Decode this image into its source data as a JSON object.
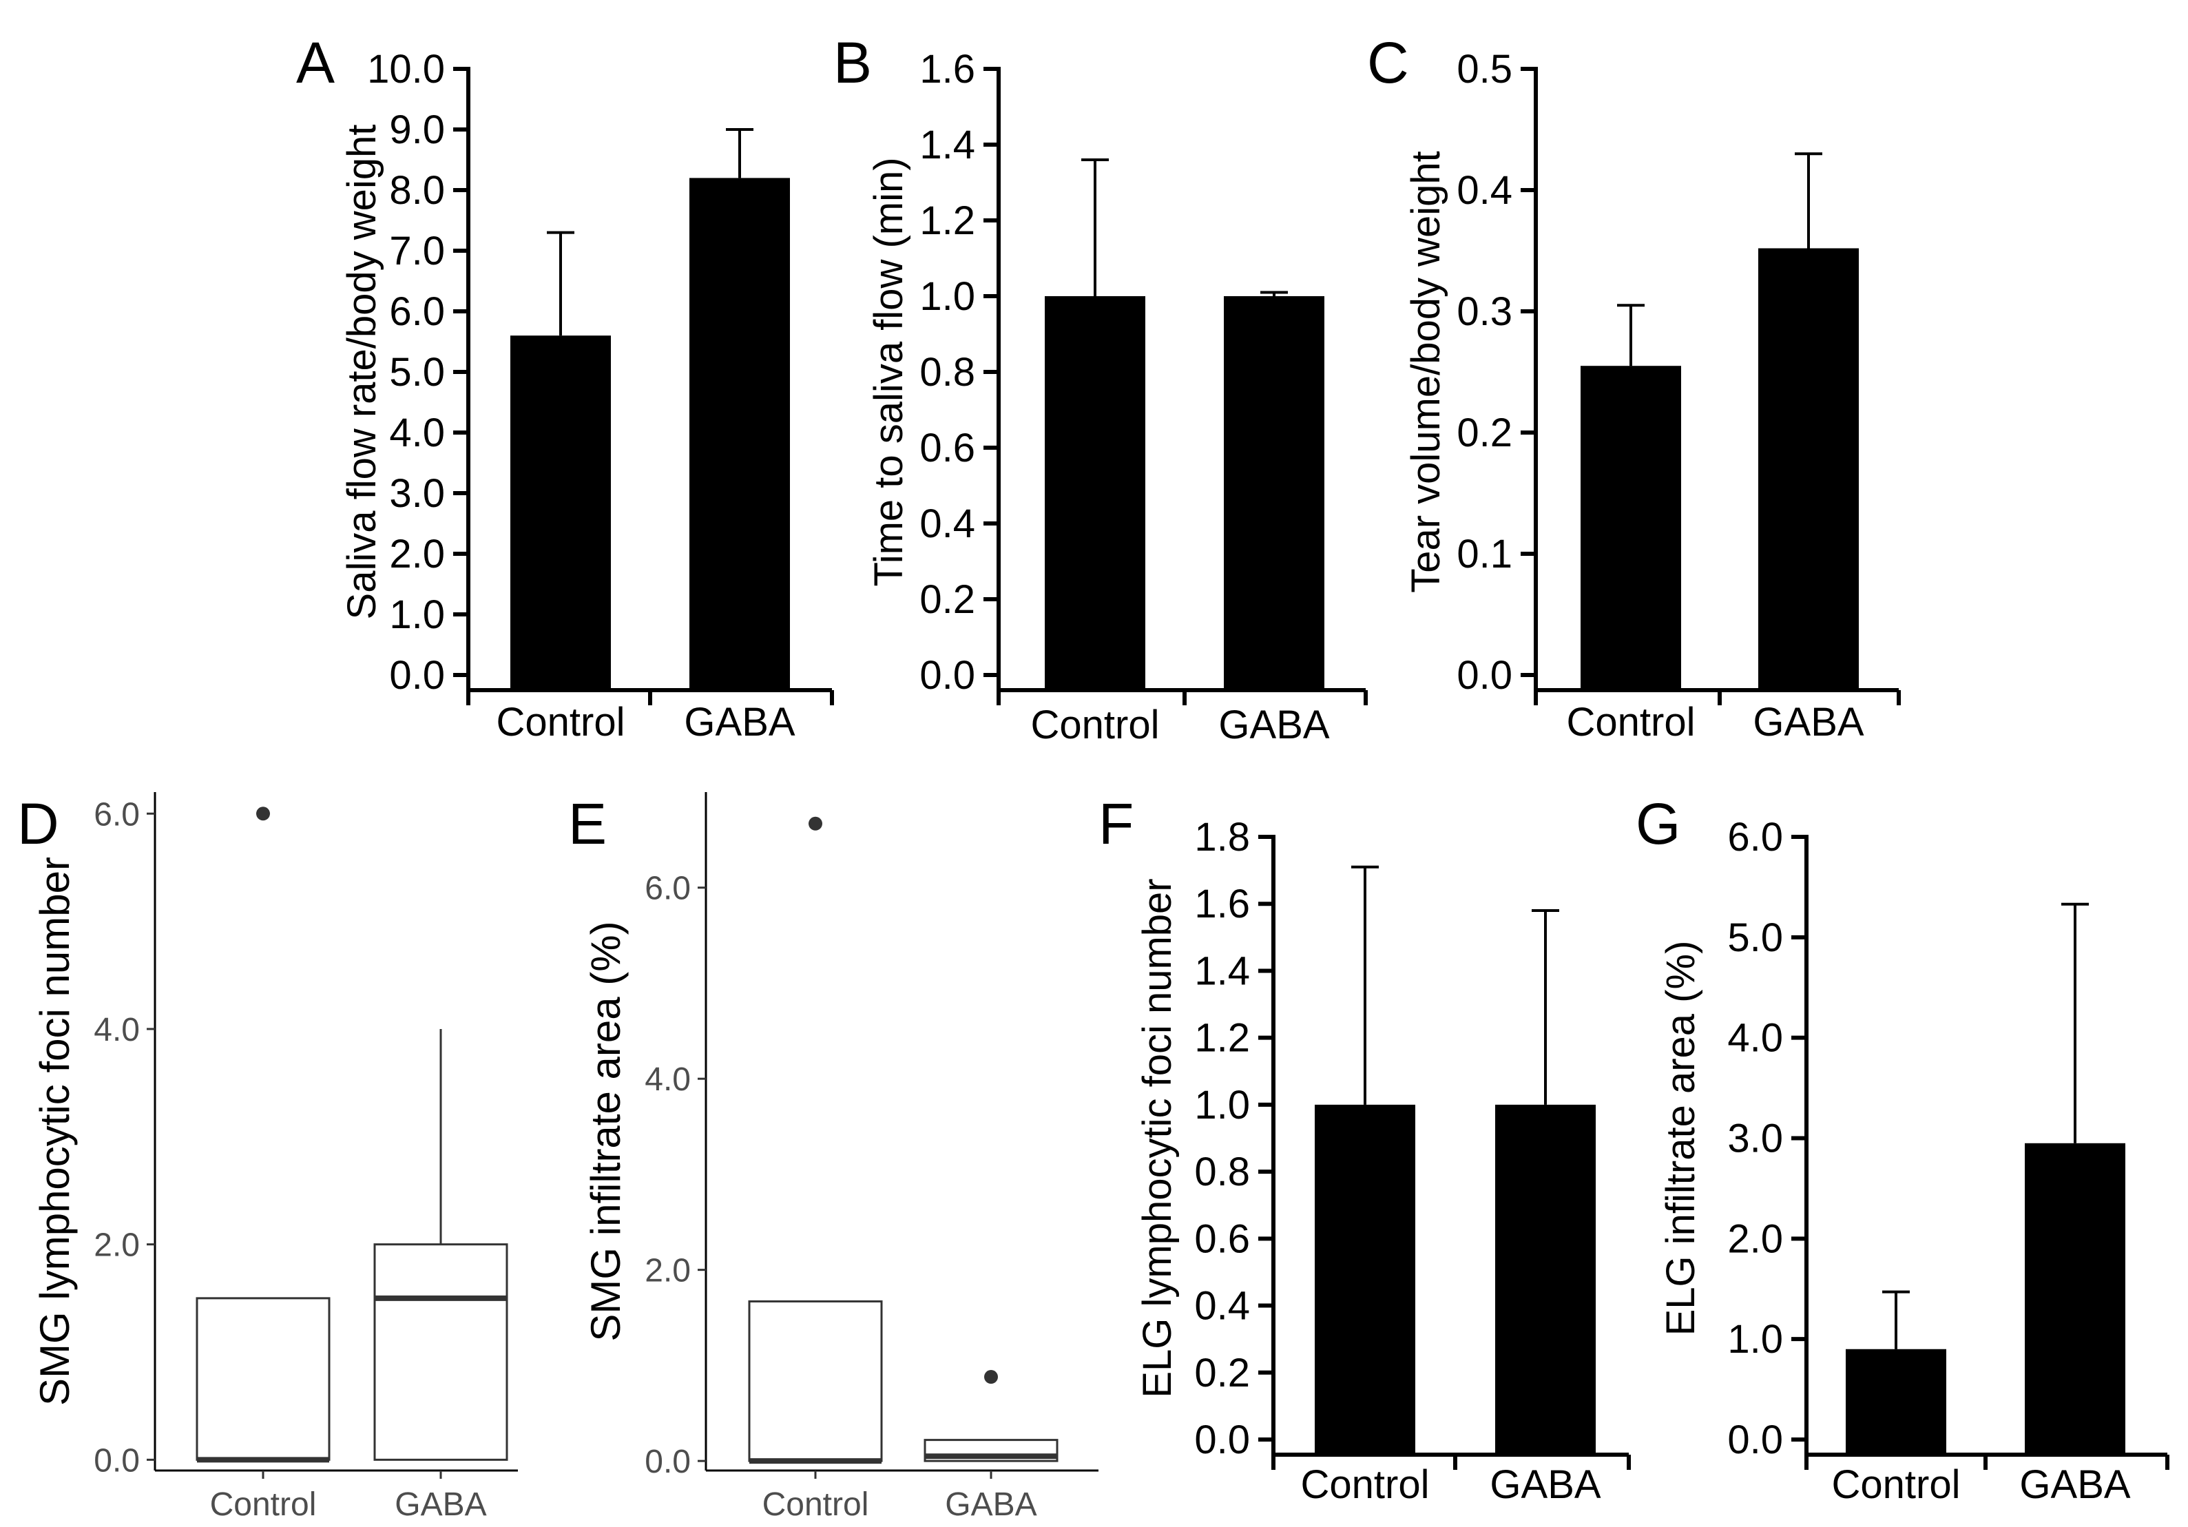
{
  "chart_data": [
    {
      "panel": "A",
      "type": "bar",
      "categories": [
        "Control",
        "GABA"
      ],
      "values": [
        5.6,
        8.2
      ],
      "error": [
        1.7,
        0.8
      ],
      "ylabel": "Saliva flow rate/body weight",
      "ylim": [
        0,
        10
      ],
      "yticks": [
        "0.0",
        "1.0",
        "2.0",
        "3.0",
        "4.0",
        "5.0",
        "6.0",
        "7.0",
        "8.0",
        "9.0",
        "10.0"
      ]
    },
    {
      "panel": "B",
      "type": "bar",
      "categories": [
        "Control",
        "GABA"
      ],
      "values": [
        1.0,
        1.0
      ],
      "error": [
        0.36,
        0.01
      ],
      "ylabel": "Time to saliva flow (min)",
      "ylim": [
        0,
        1.6
      ],
      "yticks": [
        "0.0",
        "0.2",
        "0.4",
        "0.6",
        "0.8",
        "1.0",
        "1.2",
        "1.4",
        "1.6"
      ]
    },
    {
      "panel": "C",
      "type": "bar",
      "categories": [
        "Control",
        "GABA"
      ],
      "values": [
        0.255,
        0.352
      ],
      "error": [
        0.05,
        0.078
      ],
      "ylabel": "Tear volume/body weight",
      "ylim": [
        0,
        0.5
      ],
      "yticks": [
        "0.0",
        "0.1",
        "0.2",
        "0.3",
        "0.4",
        "0.5"
      ]
    },
    {
      "panel": "D",
      "type": "box",
      "categories": [
        "Control",
        "GABA"
      ],
      "boxes": [
        {
          "q1": 0,
          "median": 0,
          "q3": 1.5,
          "whisker_low": 0,
          "whisker_high": 1.5,
          "outliers": [
            6.0
          ]
        },
        {
          "q1": 0,
          "median": 1.5,
          "q3": 2.0,
          "whisker_low": 0,
          "whisker_high": 4.0,
          "outliers": []
        }
      ],
      "ylabel": "SMG lymphocytic foci number",
      "ylim": [
        -0.1,
        6.2
      ],
      "yticks": [
        "0.0",
        "2.0",
        "4.0",
        "6.0"
      ]
    },
    {
      "panel": "E",
      "type": "box",
      "categories": [
        "Control",
        "GABA"
      ],
      "boxes": [
        {
          "q1": 0,
          "median": 0,
          "q3": 1.67,
          "whisker_low": 0,
          "whisker_high": 1.67,
          "outliers": [
            6.67
          ]
        },
        {
          "q1": 0,
          "median": 0.05,
          "q3": 0.22,
          "whisker_low": 0,
          "whisker_high": 0.22,
          "outliers": [
            0.88
          ]
        }
      ],
      "ylabel": "SMG infiltrate area (%)",
      "ylim": [
        -0.1,
        7.0
      ],
      "yticks": [
        "0.0",
        "2.0",
        "4.0",
        "6.0"
      ]
    },
    {
      "panel": "F",
      "type": "bar",
      "categories": [
        "Control",
        "GABA"
      ],
      "values": [
        1.0,
        1.0
      ],
      "error": [
        0.71,
        0.58
      ],
      "ylabel": "ELG lymphocytic foci number",
      "ylim": [
        0,
        1.8
      ],
      "yticks": [
        "0.0",
        "0.2",
        "0.4",
        "0.6",
        "0.8",
        "1.0",
        "1.2",
        "1.4",
        "1.6",
        "1.8"
      ]
    },
    {
      "panel": "G",
      "type": "bar",
      "categories": [
        "Control",
        "GABA"
      ],
      "values": [
        0.9,
        2.95
      ],
      "error": [
        0.57,
        2.38
      ],
      "ylabel": "ELG infiltrate area (%)",
      "ylim": [
        0,
        6
      ],
      "yticks": [
        "0.0",
        "1.0",
        "2.0",
        "3.0",
        "4.0",
        "5.0",
        "6.0"
      ]
    }
  ]
}
